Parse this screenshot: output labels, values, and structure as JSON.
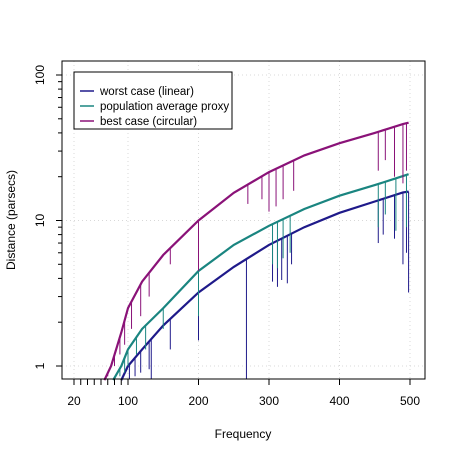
{
  "chart_data": {
    "type": "line",
    "title": "",
    "xlabel": "Frequency",
    "ylabel": "Distance (parsecs)",
    "x_scale": "mixed: 20-100 compressed, 100-500 linear",
    "y_scale": "log",
    "xlim": [
      10,
      510
    ],
    "ylim": [
      0.8,
      130
    ],
    "grid": true,
    "legend_position": "top-left",
    "x_ticks": [
      20,
      30,
      40,
      50,
      60,
      70,
      80,
      90,
      100,
      200,
      300,
      400,
      500
    ],
    "x_tick_labels": [
      "20",
      "",
      "",
      "",
      "",
      "",
      "",
      "",
      "100",
      "200",
      "300",
      "400",
      "500"
    ],
    "y_ticks": [
      1,
      2,
      3,
      4,
      5,
      6,
      7,
      8,
      9,
      10,
      20,
      30,
      40,
      50,
      60,
      70,
      80,
      90,
      100
    ],
    "y_tick_labels": [
      "1",
      "",
      "",
      "",
      "",
      "",
      "",
      "",
      "",
      "10",
      "",
      "",
      "",
      "",
      "",
      "",
      "",
      "",
      "100"
    ],
    "series": [
      {
        "name": "worst case (linear)",
        "color": "#1f1a8a",
        "points": [
          [
            90,
            0.8
          ],
          [
            100,
            1.0
          ],
          [
            120,
            1.3
          ],
          [
            150,
            1.9
          ],
          [
            200,
            3.2
          ],
          [
            250,
            4.8
          ],
          [
            300,
            6.8
          ],
          [
            350,
            9.0
          ],
          [
            400,
            11.3
          ],
          [
            450,
            13.5
          ],
          [
            490,
            15.6
          ],
          [
            498,
            15.8
          ]
        ],
        "dips": [
          [
            102,
            0.8
          ],
          [
            110,
            0.85
          ],
          [
            118,
            0.9
          ],
          [
            130,
            0.95
          ],
          [
            133,
            0.8
          ],
          [
            160,
            1.3
          ],
          [
            200,
            1.5
          ],
          [
            268,
            0.8
          ],
          [
            305,
            3.8
          ],
          [
            312,
            3.5
          ],
          [
            318,
            3.9
          ],
          [
            326,
            3.7
          ],
          [
            332,
            5.0
          ],
          [
            455,
            7.0
          ],
          [
            462,
            8.0
          ],
          [
            478,
            7.5
          ],
          [
            490,
            5.0
          ],
          [
            495,
            6.0
          ],
          [
            498,
            3.2
          ]
        ]
      },
      {
        "name": "population average proxy",
        "color": "#1a8580",
        "points": [
          [
            78,
            0.8
          ],
          [
            90,
            1.0
          ],
          [
            100,
            1.3
          ],
          [
            120,
            1.8
          ],
          [
            150,
            2.5
          ],
          [
            200,
            4.5
          ],
          [
            250,
            6.8
          ],
          [
            300,
            9.2
          ],
          [
            350,
            12.0
          ],
          [
            400,
            14.8
          ],
          [
            450,
            17.5
          ],
          [
            490,
            20.2
          ],
          [
            498,
            20.8
          ]
        ],
        "dips": [
          [
            88,
            0.85
          ],
          [
            95,
            0.9
          ],
          [
            100,
            1.0
          ],
          [
            112,
            1.2
          ],
          [
            125,
            1.3
          ],
          [
            150,
            1.8
          ],
          [
            200,
            2.2
          ],
          [
            305,
            5.0
          ],
          [
            312,
            4.7
          ],
          [
            320,
            5.5
          ],
          [
            330,
            6.0
          ],
          [
            455,
            9.0
          ],
          [
            465,
            11.0
          ],
          [
            480,
            8.5
          ],
          [
            495,
            9.0
          ]
        ]
      },
      {
        "name": "best case (circular)",
        "color": "#8a1278",
        "points": [
          [
            65,
            0.8
          ],
          [
            75,
            1.0
          ],
          [
            90,
            1.7
          ],
          [
            100,
            2.5
          ],
          [
            120,
            3.8
          ],
          [
            150,
            5.8
          ],
          [
            200,
            10.0
          ],
          [
            250,
            15.5
          ],
          [
            300,
            21.5
          ],
          [
            350,
            28.0
          ],
          [
            400,
            34.0
          ],
          [
            450,
            40.0
          ],
          [
            490,
            46.0
          ],
          [
            498,
            47.0
          ]
        ],
        "dips": [
          [
            70,
            0.85
          ],
          [
            80,
            1.0
          ],
          [
            88,
            1.2
          ],
          [
            95,
            1.4
          ],
          [
            105,
            1.8
          ],
          [
            118,
            2.2
          ],
          [
            130,
            3.0
          ],
          [
            160,
            5.0
          ],
          [
            200,
            4.5
          ],
          [
            270,
            13.0
          ],
          [
            290,
            14.0
          ],
          [
            300,
            11.5
          ],
          [
            310,
            12.5
          ],
          [
            320,
            14.0
          ],
          [
            335,
            16.0
          ],
          [
            455,
            22.0
          ],
          [
            465,
            26.0
          ],
          [
            478,
            20.0
          ],
          [
            490,
            18.0
          ],
          [
            495,
            22.0
          ]
        ]
      }
    ]
  }
}
